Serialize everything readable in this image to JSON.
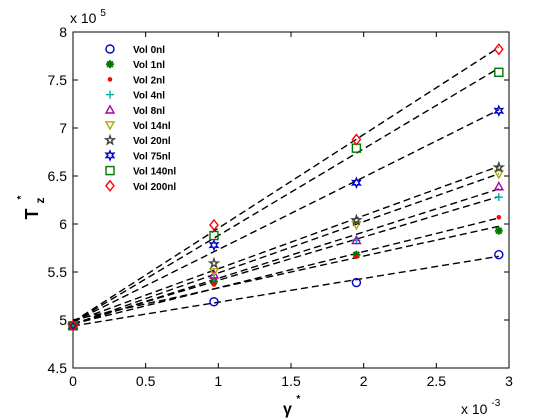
{
  "chart_data": {
    "type": "scatter",
    "title": "",
    "xlabel_base": "γ",
    "xlabel_sup": "*",
    "ylabel_base": "T",
    "ylabel_sub": "z",
    "ylabel_sup": "*",
    "x_multiplier_base": "x 10",
    "x_multiplier_exp": "-3",
    "y_multiplier_base": "x 10",
    "y_multiplier_exp": "5",
    "xlim": [
      0,
      3.0
    ],
    "ylim": [
      4.5,
      8.0
    ],
    "xticks": [
      0,
      0.5,
      1,
      1.5,
      2,
      2.5,
      3
    ],
    "xtick_labels": [
      "0",
      "0.5",
      "1",
      "1.5",
      "2",
      "2.5",
      "3"
    ],
    "yticks": [
      4.5,
      5,
      5.5,
      6,
      6.5,
      7,
      7.5,
      8
    ],
    "ytick_labels": [
      "4.5",
      "5",
      "5.5",
      "6",
      "6.5",
      "7",
      "7.5",
      "8"
    ],
    "grid": false,
    "legend_position": "top-left",
    "fit_lines": "dashed black linear fit per series",
    "series": [
      {
        "name": "Vol 0nl",
        "marker": "circle",
        "color": "#0000cc",
        "x": [
          0,
          0.97,
          1.95,
          2.93
        ],
        "y": [
          4.94,
          5.19,
          5.39,
          5.68
        ]
      },
      {
        "name": "Vol 1nl",
        "marker": "asterisk",
        "color": "#007700",
        "x": [
          0,
          0.97,
          1.95,
          2.93
        ],
        "y": [
          4.94,
          5.4,
          5.68,
          5.93
        ]
      },
      {
        "name": "Vol 2nl",
        "marker": "dot",
        "color": "#ff0000",
        "x": [
          0,
          0.97,
          1.95,
          2.93
        ],
        "y": [
          4.94,
          5.37,
          5.66,
          6.07
        ]
      },
      {
        "name": "Vol 4nl",
        "marker": "plus",
        "color": "#00aaaa",
        "x": [
          0,
          0.97,
          1.95,
          2.93
        ],
        "y": [
          4.94,
          5.44,
          5.83,
          6.28
        ]
      },
      {
        "name": "Vol 8nl",
        "marker": "triangle-up",
        "color": "#aa00aa",
        "x": [
          0,
          0.97,
          1.95,
          2.93
        ],
        "y": [
          4.94,
          5.47,
          5.83,
          6.39
        ]
      },
      {
        "name": "Vol 14nl",
        "marker": "triangle-down",
        "color": "#aaaa00",
        "x": [
          0,
          0.97,
          1.95,
          2.93
        ],
        "y": [
          4.94,
          5.5,
          5.99,
          6.52
        ]
      },
      {
        "name": "Vol 20nl",
        "marker": "star",
        "color": "#444444",
        "x": [
          0,
          0.97,
          1.95,
          2.93
        ],
        "y": [
          4.94,
          5.59,
          6.04,
          6.59
        ]
      },
      {
        "name": "Vol 75nl",
        "marker": "hexagram",
        "color": "#0000cc",
        "x": [
          0,
          0.97,
          1.95,
          2.93
        ],
        "y": [
          4.94,
          5.78,
          6.43,
          7.18
        ]
      },
      {
        "name": "Vol 140nl",
        "marker": "square",
        "color": "#007700",
        "x": [
          0,
          0.97,
          1.95,
          2.93
        ],
        "y": [
          4.94,
          5.88,
          6.79,
          7.58
        ]
      },
      {
        "name": "Vol 200nl",
        "marker": "diamond",
        "color": "#ff0000",
        "x": [
          0,
          0.97,
          1.95,
          2.93
        ],
        "y": [
          4.94,
          5.99,
          6.88,
          7.82
        ]
      }
    ]
  }
}
